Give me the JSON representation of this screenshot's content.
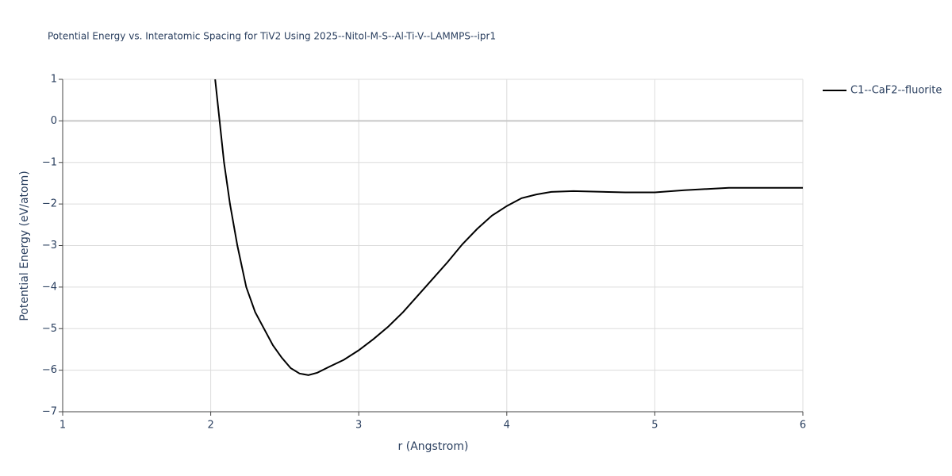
{
  "chart_data": {
    "type": "line",
    "title": "Potential Energy vs. Interatomic Spacing for TiV2 Using 2025--Nitol-M-S--Al-Ti-V--LAMMPS--ipr1",
    "x_label": "r (Angstrom)",
    "y_label": "Potential Energy (eV/atom)",
    "x": [
      2.03,
      2.06,
      2.09,
      2.13,
      2.18,
      2.24,
      2.3,
      2.36,
      2.42,
      2.48,
      2.54,
      2.6,
      2.66,
      2.72,
      2.8,
      2.9,
      3.0,
      3.1,
      3.2,
      3.3,
      3.4,
      3.5,
      3.6,
      3.7,
      3.8,
      3.9,
      4.0,
      4.1,
      4.2,
      4.3,
      4.45,
      4.8,
      5.0,
      5.2,
      5.5,
      6.0
    ],
    "series": [
      {
        "name": "C1--CaF2--fluorite",
        "color": "#000000",
        "values": [
          1,
          0,
          -1,
          -2,
          -3,
          -4,
          -4.6,
          -5,
          -5.4,
          -5.7,
          -5.95,
          -6.08,
          -6.12,
          -6.06,
          -5.92,
          -5.75,
          -5.52,
          -5.25,
          -4.95,
          -4.6,
          -4.2,
          -3.8,
          -3.4,
          -2.97,
          -2.6,
          -2.28,
          -2.05,
          -1.86,
          -1.77,
          -1.71,
          -1.69,
          -1.72,
          -1.72,
          -1.67,
          -1.61,
          -1.61
        ]
      }
    ],
    "xlim": [
      1,
      6
    ],
    "xticks": [
      1,
      2,
      3,
      4,
      5,
      6
    ],
    "ylim": [
      -7,
      1
    ],
    "yticks": [
      {
        "value": -7,
        "label": "−7"
      },
      {
        "value": -6,
        "label": "−6"
      },
      {
        "value": -5,
        "label": "−5"
      },
      {
        "value": -4,
        "label": "−4"
      },
      {
        "value": -3,
        "label": "−3"
      },
      {
        "value": -2,
        "label": "−2"
      },
      {
        "value": -1,
        "label": "−1"
      },
      0,
      1
    ],
    "grid": true,
    "legend": "right"
  }
}
